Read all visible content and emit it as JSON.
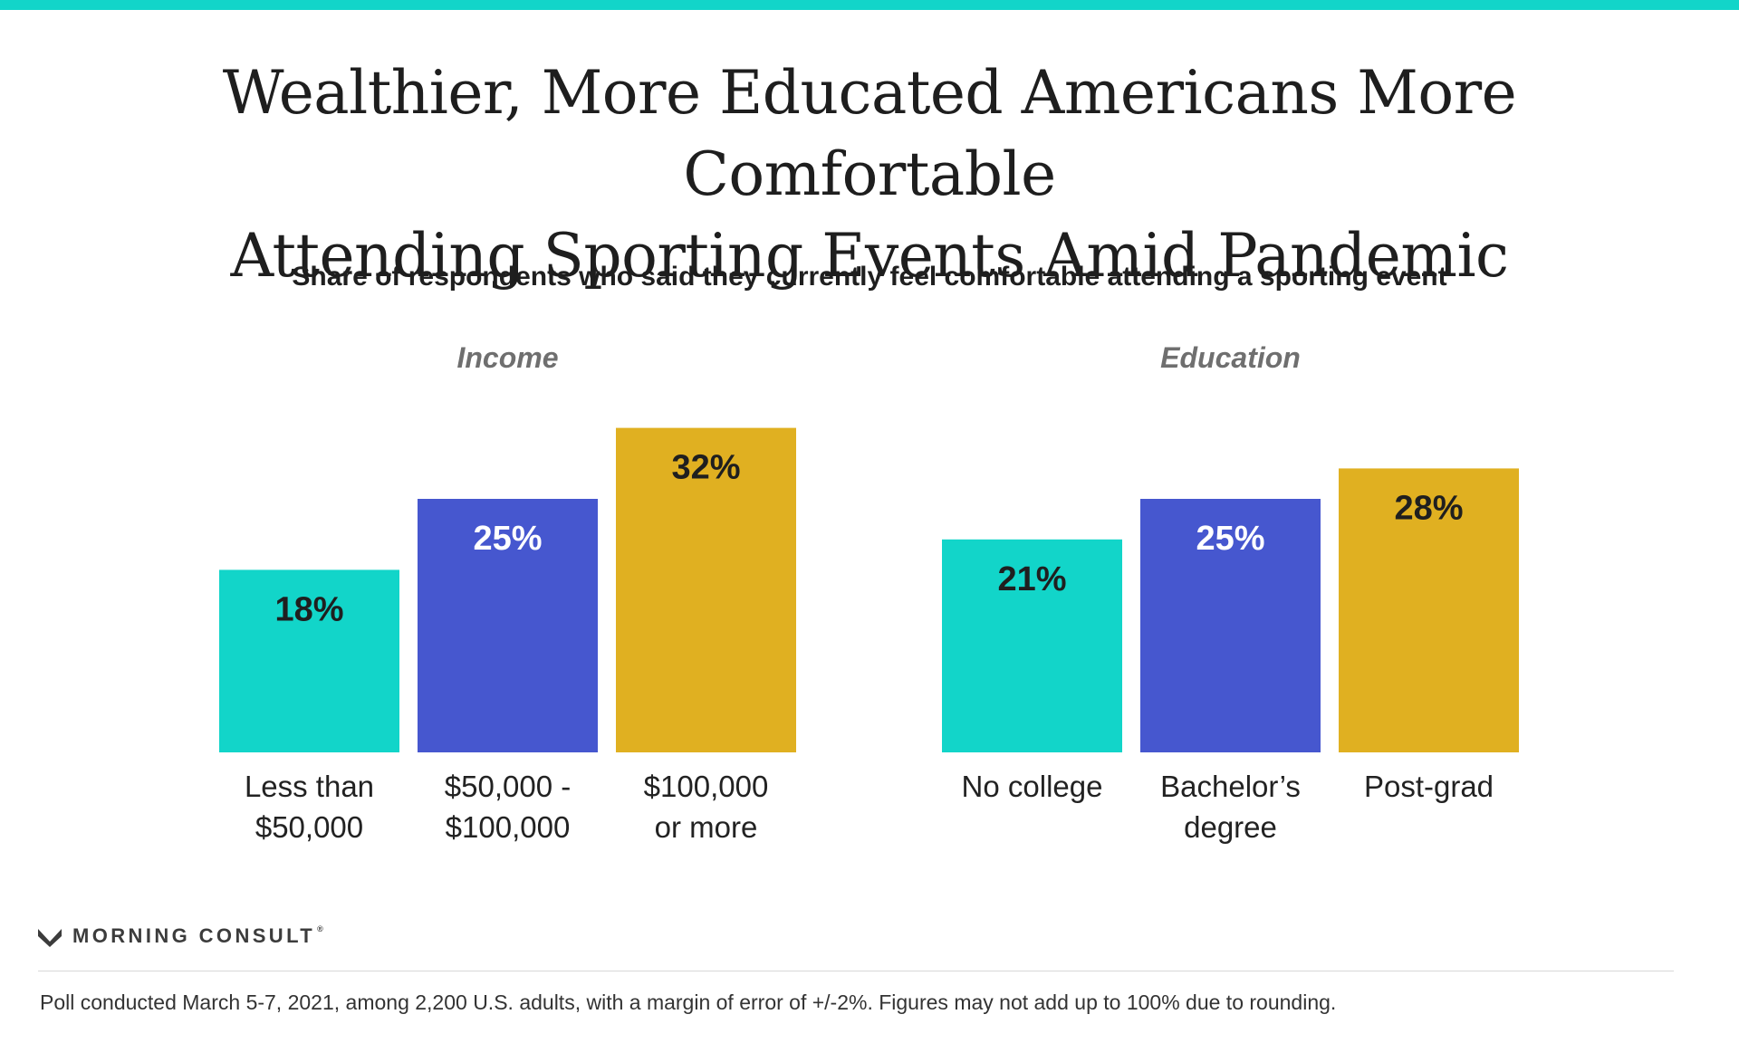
{
  "title_line1": "Wealthier, More Educated Americans More Comfortable",
  "title_line2": "Attending Sporting Events Amid Pandemic",
  "subtitle": "Share of respondents who said they currently feel comfortable attending a sporting event",
  "brand": {
    "name": "MORNING CONSULT",
    "mark": "®",
    "icon": "morning-consult-logo-icon"
  },
  "footnote": "Poll conducted March 5-7, 2021, among 2,200 U.S. adults, with a margin of error of +/-2%. Figures may not add up to 100% due to rounding.",
  "colors": {
    "accent": "#12d5c9",
    "teal": "#12d5c9",
    "blue": "#4657cf",
    "gold": "#e0b021",
    "label_dark": "#1f1f1f",
    "label_light": "#ffffff"
  },
  "chart_data": {
    "type": "bar",
    "title": "Wealthier, More Educated Americans More Comfortable Attending Sporting Events Amid Pandemic",
    "subtitle": "Share of respondents who said they currently feel comfortable attending a sporting event",
    "xlabel": "",
    "ylabel": "",
    "ylim": [
      0,
      35
    ],
    "grid": false,
    "unit": "%",
    "groups": [
      {
        "name": "Income",
        "categories": [
          [
            "Less than",
            "$50,000"
          ],
          [
            "$50,000 -",
            "$100,000"
          ],
          [
            "$100,000",
            "or more"
          ]
        ],
        "values": [
          18,
          25,
          32
        ],
        "labels": [
          "18%",
          "25%",
          "32%"
        ],
        "colors": [
          "#12d5c9",
          "#4657cf",
          "#e0b021"
        ],
        "label_colors": [
          "#1f1f1f",
          "#ffffff",
          "#1f1f1f"
        ]
      },
      {
        "name": "Education",
        "categories": [
          [
            "No college"
          ],
          [
            "Bachelor’s",
            "degree"
          ],
          [
            "Post-grad"
          ]
        ],
        "values": [
          21,
          25,
          28
        ],
        "labels": [
          "21%",
          "25%",
          "28%"
        ],
        "colors": [
          "#12d5c9",
          "#4657cf",
          "#e0b021"
        ],
        "label_colors": [
          "#1f1f1f",
          "#ffffff",
          "#1f1f1f"
        ]
      }
    ]
  }
}
